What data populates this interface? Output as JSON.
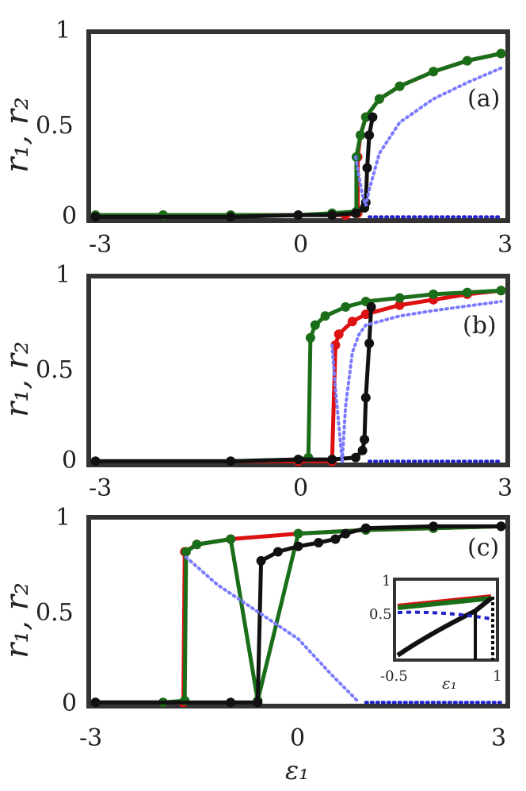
{
  "chart_data": [
    {
      "panel": "(a)",
      "type": "line",
      "ylabel": "r1,r2",
      "xlabel": "",
      "xlim": [
        -3.1,
        3.1
      ],
      "ylim": [
        -0.02,
        1.02
      ],
      "xticks": [
        "-3",
        "0",
        "3"
      ],
      "yticks": [
        "0",
        "0.5",
        "1"
      ],
      "series": [
        {
          "color": "#dd1111",
          "style": "markers",
          "points": [
            [
              -3,
              0.01
            ],
            [
              -2,
              0.01
            ],
            [
              -1,
              0.01
            ],
            [
              0,
              0.01
            ],
            [
              0.7,
              0.01
            ],
            [
              0.88,
              0.02
            ],
            [
              0.88,
              0.33
            ],
            [
              0.92,
              0.45
            ],
            [
              1,
              0.55
            ],
            [
              1.2,
              0.65
            ],
            [
              1.5,
              0.72
            ],
            [
              2,
              0.8
            ],
            [
              2.5,
              0.86
            ],
            [
              3,
              0.9
            ]
          ]
        },
        {
          "color": "#1a6e1a",
          "style": "markers",
          "points": [
            [
              -3,
              0.01
            ],
            [
              -2,
              0.01
            ],
            [
              -1,
              0.01
            ],
            [
              0,
              0.01
            ],
            [
              0.5,
              0.02
            ],
            [
              0.86,
              0.03
            ],
            [
              0.86,
              0.33
            ],
            [
              0.92,
              0.45
            ],
            [
              1,
              0.55
            ],
            [
              1.2,
              0.65
            ],
            [
              1.5,
              0.72
            ],
            [
              2,
              0.8
            ],
            [
              2.5,
              0.86
            ],
            [
              3,
              0.9
            ]
          ]
        },
        {
          "color": "#111111",
          "style": "markers",
          "points": [
            [
              -3,
              0.0
            ],
            [
              -1,
              0.0
            ],
            [
              0,
              0.01
            ],
            [
              0.5,
              0.01
            ],
            [
              0.85,
              0.02
            ],
            [
              0.98,
              0.05
            ],
            [
              1.0,
              0.08
            ],
            [
              1.02,
              0.27
            ],
            [
              1.05,
              0.45
            ],
            [
              1.1,
              0.55
            ]
          ]
        },
        {
          "color": "#7a7aff",
          "style": "dotted",
          "points": [
            [
              0.85,
              0.33
            ],
            [
              0.9,
              0.22
            ],
            [
              0.95,
              0.12
            ],
            [
              1.0,
              0.06
            ],
            [
              1.05,
              0.15
            ],
            [
              1.2,
              0.35
            ],
            [
              1.5,
              0.52
            ],
            [
              2,
              0.65
            ],
            [
              2.5,
              0.74
            ],
            [
              3,
              0.82
            ]
          ]
        },
        {
          "color": "#2222cc",
          "style": "dotted",
          "points": [
            [
              1.05,
              0.0
            ],
            [
              2,
              0.0
            ],
            [
              3,
              0.0
            ]
          ]
        }
      ]
    },
    {
      "panel": "(b)",
      "type": "line",
      "ylabel": "r1,r2",
      "xlabel": "",
      "xlim": [
        -3.1,
        3.1
      ],
      "ylim": [
        -0.02,
        1.02
      ],
      "xticks": [
        "-3",
        "0",
        "3"
      ],
      "yticks": [
        "0",
        "0.5",
        "1"
      ],
      "series": [
        {
          "color": "#dd1111",
          "style": "markers",
          "points": [
            [
              -3,
              0.0
            ],
            [
              -1,
              0.0
            ],
            [
              0,
              0.0
            ],
            [
              0.5,
              0.0
            ],
            [
              0.55,
              0.64
            ],
            [
              0.6,
              0.7
            ],
            [
              0.8,
              0.77
            ],
            [
              1,
              0.81
            ],
            [
              1.5,
              0.86
            ],
            [
              2,
              0.89
            ],
            [
              2.5,
              0.92
            ],
            [
              3,
              0.94
            ]
          ]
        },
        {
          "color": "#1a6e1a",
          "style": "markers",
          "points": [
            [
              -3,
              0.0
            ],
            [
              -1,
              0.0
            ],
            [
              0,
              0.01
            ],
            [
              0.15,
              0.02
            ],
            [
              0.18,
              0.68
            ],
            [
              0.25,
              0.75
            ],
            [
              0.4,
              0.8
            ],
            [
              0.7,
              0.85
            ],
            [
              1,
              0.88
            ],
            [
              1.5,
              0.9
            ],
            [
              2,
              0.92
            ],
            [
              2.5,
              0.93
            ],
            [
              3,
              0.94
            ]
          ]
        },
        {
          "color": "#111111",
          "style": "markers",
          "points": [
            [
              -3,
              0.0
            ],
            [
              -1,
              0.0
            ],
            [
              0,
              0.01
            ],
            [
              0.5,
              0.01
            ],
            [
              0.85,
              0.02
            ],
            [
              0.95,
              0.06
            ],
            [
              0.98,
              0.12
            ],
            [
              1.0,
              0.35
            ],
            [
              1.05,
              0.65
            ],
            [
              1.08,
              0.85
            ]
          ]
        },
        {
          "color": "#7a7aff",
          "style": "dotted",
          "points": [
            [
              0.5,
              0.64
            ],
            [
              0.55,
              0.4
            ],
            [
              0.6,
              0.2
            ],
            [
              0.65,
              0.0
            ],
            [
              0.7,
              0.3
            ],
            [
              0.8,
              0.6
            ],
            [
              0.9,
              0.7
            ],
            [
              1,
              0.75
            ],
            [
              1.5,
              0.8
            ],
            [
              2,
              0.83
            ],
            [
              3,
              0.88
            ]
          ]
        },
        {
          "color": "#2222cc",
          "style": "dotted",
          "points": [
            [
              1.05,
              0.0
            ],
            [
              2,
              0.0
            ],
            [
              3,
              0.0
            ]
          ]
        }
      ]
    },
    {
      "panel": "(c)",
      "type": "line",
      "ylabel": "r1,r2",
      "xlabel": "ε1",
      "xlim": [
        -3.1,
        3.1
      ],
      "ylim": [
        -0.02,
        1.02
      ],
      "xticks": [
        "-3",
        "0",
        "3"
      ],
      "yticks": [
        "0",
        "0.5",
        "1"
      ],
      "series": [
        {
          "color": "#dd1111",
          "style": "markers",
          "points": [
            [
              -3,
              0.0
            ],
            [
              -2,
              0.0
            ],
            [
              -1.7,
              0.0
            ],
            [
              -1.68,
              0.83
            ],
            [
              -1.5,
              0.87
            ],
            [
              -1,
              0.9
            ],
            [
              0,
              0.93
            ],
            [
              1,
              0.95
            ],
            [
              2,
              0.96
            ],
            [
              3,
              0.97
            ]
          ]
        },
        {
          "color": "#1a6e1a",
          "style": "markers",
          "points": [
            [
              -3,
              0.0
            ],
            [
              -2,
              0.0
            ],
            [
              -1.68,
              0.01
            ],
            [
              -1.66,
              0.83
            ],
            [
              -1.5,
              0.87
            ],
            [
              -1,
              0.9
            ],
            [
              -0.6,
              0.01
            ],
            [
              0,
              0.93
            ],
            [
              1,
              0.95
            ],
            [
              2,
              0.96
            ],
            [
              3,
              0.97
            ]
          ]
        },
        {
          "color": "#111111",
          "style": "markers",
          "points": [
            [
              -3,
              0.0
            ],
            [
              -1,
              0.0
            ],
            [
              -0.6,
              0.0
            ],
            [
              -0.55,
              0.78
            ],
            [
              -0.3,
              0.83
            ],
            [
              0,
              0.86
            ],
            [
              0.3,
              0.88
            ],
            [
              0.55,
              0.9
            ],
            [
              0.7,
              0.93
            ],
            [
              1,
              0.96
            ],
            [
              2,
              0.97
            ],
            [
              3,
              0.97
            ]
          ]
        },
        {
          "color": "#7a7aff",
          "style": "dotted",
          "points": [
            [
              -1.66,
              0.8
            ],
            [
              -1.2,
              0.65
            ],
            [
              -0.6,
              0.5
            ],
            [
              0,
              0.35
            ],
            [
              0.5,
              0.15
            ],
            [
              0.9,
              0.0
            ]
          ]
        },
        {
          "color": "#2222cc",
          "style": "dotted",
          "points": [
            [
              1.0,
              0.0
            ],
            [
              2,
              0.0
            ],
            [
              3,
              0.0
            ]
          ]
        }
      ],
      "inset": {
        "xlim": [
          -0.5,
          1.0
        ],
        "ylim": [
          0.0,
          1.0
        ],
        "xticks": [
          "-0.5",
          "1"
        ],
        "yticks": [
          "0.5",
          "1"
        ],
        "xlabel": "ε1"
      }
    }
  ]
}
